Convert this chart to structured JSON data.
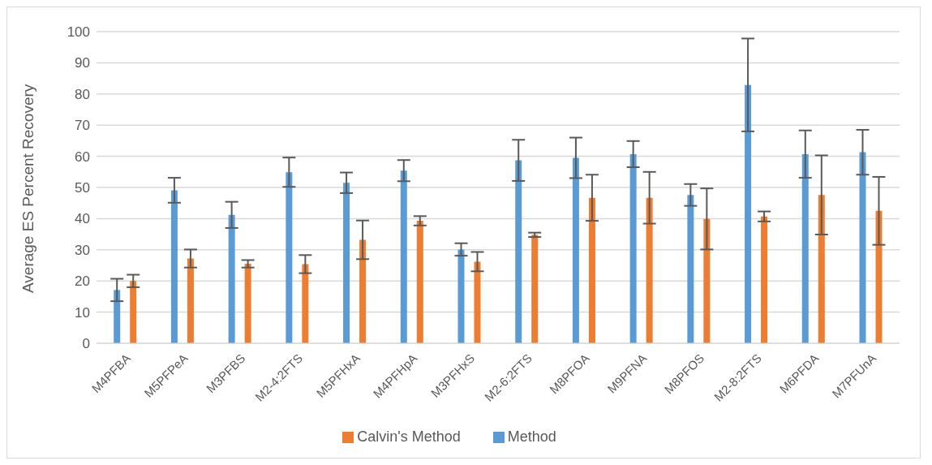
{
  "chart_data": {
    "type": "bar",
    "ylabel": "Average ES Percent Recovery",
    "categories": [
      "M4PFBA",
      "M5PFPeA",
      "M3PFBS",
      "M2-4:2FTS",
      "M5PFHxA",
      "M4PFHpA",
      "M3PFHxS",
      "M2-6:2FTS",
      "M8PFOA",
      "M9PFNA",
      "M8PFOS",
      "M2-8:2FTS",
      "M6PFDA",
      "M7PFUnA"
    ],
    "series": [
      {
        "name": "Method",
        "color": "#5b9bd5",
        "values": [
          17.1,
          49.1,
          41.2,
          54.9,
          51.5,
          55.4,
          30.1,
          58.7,
          59.5,
          60.7,
          47.6,
          82.9,
          60.7,
          61.3
        ],
        "errors": [
          3.6,
          4,
          4.2,
          4.7,
          3.3,
          3.4,
          2,
          6.6,
          6.5,
          4.2,
          3.5,
          14.9,
          7.6,
          7.2
        ]
      },
      {
        "name": "Calvin's Method",
        "color": "#ed7d31",
        "values": [
          20,
          27.2,
          25.5,
          25.4,
          33.2,
          39.3,
          26.2,
          34.8,
          46.7,
          46.7,
          39.9,
          40.7,
          47.6,
          42.5
        ],
        "errors": [
          2,
          2.9,
          1.2,
          2.9,
          6.2,
          1.5,
          3.1,
          0.7,
          7.4,
          8.3,
          9.8,
          1.6,
          12.7,
          10.9
        ]
      }
    ],
    "ylim": [
      0,
      100
    ],
    "yticks": [
      0,
      10,
      20,
      30,
      40,
      50,
      60,
      70,
      80,
      90,
      100
    ],
    "grid": "y",
    "legend": "bottom"
  }
}
